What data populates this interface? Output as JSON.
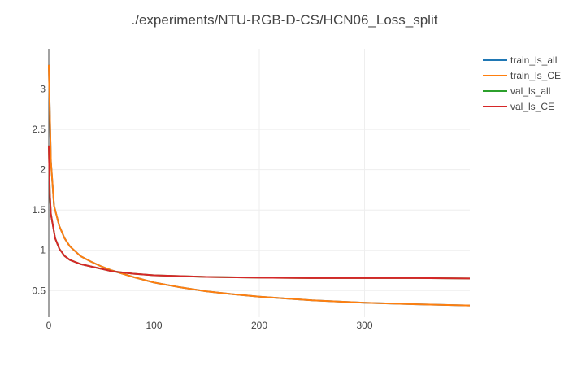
{
  "chart_data": {
    "type": "line",
    "title": "./experiments/NTU-RGB-D-CS/HCN06_Loss_split",
    "xlabel": "",
    "ylabel": "",
    "xlim": [
      0,
      400
    ],
    "ylim": [
      0.17,
      3.5
    ],
    "x_ticks": [
      0,
      100,
      200,
      300
    ],
    "y_ticks": [
      0.5,
      1,
      1.5,
      2,
      2.5,
      3
    ],
    "grid": true,
    "legend_position": "top-right",
    "series": [
      {
        "name": "train_ls_all",
        "color": "#1f77b4",
        "x": [
          0,
          2,
          5,
          10,
          15,
          20,
          30,
          40,
          50,
          60,
          70,
          80,
          100,
          125,
          150,
          175,
          200,
          250,
          300,
          350,
          400
        ],
        "values": [
          3.3,
          2.1,
          1.55,
          1.3,
          1.15,
          1.05,
          0.93,
          0.86,
          0.8,
          0.75,
          0.71,
          0.67,
          0.6,
          0.54,
          0.49,
          0.455,
          0.425,
          0.38,
          0.35,
          0.33,
          0.315
        ]
      },
      {
        "name": "train_ls_CE",
        "color": "#ff7f0e",
        "x": [
          0,
          2,
          5,
          10,
          15,
          20,
          30,
          40,
          50,
          60,
          70,
          80,
          100,
          125,
          150,
          175,
          200,
          250,
          300,
          350,
          400
        ],
        "values": [
          3.3,
          2.1,
          1.55,
          1.3,
          1.15,
          1.05,
          0.93,
          0.86,
          0.8,
          0.75,
          0.71,
          0.67,
          0.6,
          0.54,
          0.49,
          0.455,
          0.425,
          0.38,
          0.35,
          0.33,
          0.315
        ]
      },
      {
        "name": "val_ls_all",
        "color": "#2ca02c",
        "x": [
          0,
          1,
          2,
          4,
          6,
          10,
          15,
          20,
          30,
          40,
          50,
          60,
          80,
          100,
          150,
          200,
          250,
          300,
          350,
          400
        ],
        "values": [
          2.3,
          1.7,
          1.45,
          1.3,
          1.15,
          1.02,
          0.93,
          0.88,
          0.83,
          0.8,
          0.77,
          0.74,
          0.71,
          0.69,
          0.67,
          0.66,
          0.655,
          0.655,
          0.655,
          0.65
        ]
      },
      {
        "name": "val_ls_CE",
        "color": "#d62728",
        "x": [
          0,
          1,
          2,
          4,
          6,
          10,
          15,
          20,
          30,
          40,
          50,
          60,
          80,
          100,
          150,
          200,
          250,
          300,
          350,
          400
        ],
        "values": [
          2.3,
          1.7,
          1.45,
          1.3,
          1.15,
          1.02,
          0.93,
          0.88,
          0.83,
          0.8,
          0.77,
          0.74,
          0.71,
          0.69,
          0.67,
          0.66,
          0.655,
          0.655,
          0.655,
          0.65
        ]
      }
    ]
  }
}
